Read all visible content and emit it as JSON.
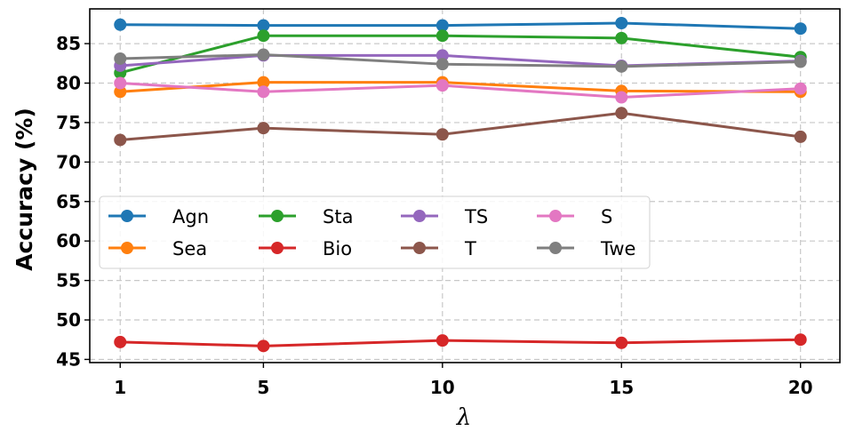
{
  "chart_data": {
    "type": "line",
    "title": "",
    "xlabel": "λ",
    "ylabel": "Accuracy (%)",
    "x": [
      1,
      5,
      10,
      15,
      20
    ],
    "xticks": [
      "1",
      "5",
      "10",
      "15",
      "20"
    ],
    "yticks": [
      "45",
      "50",
      "55",
      "60",
      "65",
      "70",
      "75",
      "80",
      "85"
    ],
    "ylim": [
      44.6,
      89.4
    ],
    "grid": true,
    "legend_position": "center-left",
    "series": [
      {
        "name": "Agn",
        "color": "#1f77b4",
        "values": [
          87.4,
          87.3,
          87.3,
          87.6,
          86.9
        ]
      },
      {
        "name": "Sea",
        "color": "#ff7f0e",
        "values": [
          78.9,
          80.1,
          80.1,
          79.0,
          78.9
        ]
      },
      {
        "name": "Sta",
        "color": "#2ca02c",
        "values": [
          81.3,
          86.0,
          86.0,
          85.7,
          83.3
        ]
      },
      {
        "name": "Bio",
        "color": "#d62728",
        "values": [
          47.2,
          46.7,
          47.4,
          47.1,
          47.5
        ]
      },
      {
        "name": "TS",
        "color": "#9467bd",
        "values": [
          82.2,
          83.5,
          83.5,
          82.2,
          82.8
        ]
      },
      {
        "name": "T",
        "color": "#8c564b",
        "values": [
          72.8,
          74.3,
          73.5,
          76.2,
          73.2
        ]
      },
      {
        "name": "S",
        "color": "#e377c2",
        "values": [
          80.0,
          78.9,
          79.7,
          78.2,
          79.3
        ]
      },
      {
        "name": "Twe",
        "color": "#7f7f7f",
        "values": [
          83.1,
          83.6,
          82.4,
          82.1,
          82.7
        ]
      }
    ]
  }
}
